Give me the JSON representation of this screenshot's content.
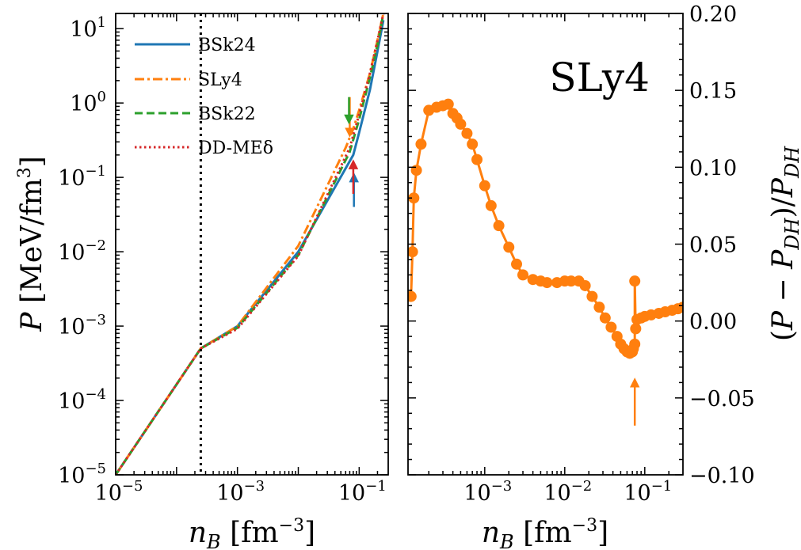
{
  "chart_data": [
    {
      "type": "line",
      "xlabel": "n_B [fm^-3]",
      "ylabel": "P [MeV/fm^3]",
      "xscale": "log",
      "yscale": "log",
      "xlim": [
        1e-05,
        0.3
      ],
      "ylim": [
        1e-05,
        16
      ],
      "xticks": [
        "10^-5",
        "10^-3",
        "10^-1"
      ],
      "yticks": [
        "10^-5",
        "10^-4",
        "10^-3",
        "10^-2",
        "10^-1",
        "10^0",
        "10^1"
      ],
      "vline_x": 0.00025,
      "legend_position": "top-left",
      "series": [
        {
          "name": "BSk24",
          "color": "#1f77b4",
          "style": "solid",
          "x": [
            1e-05,
            0.00025,
            0.001,
            0.01,
            0.08,
            0.1,
            0.15,
            0.2,
            0.25
          ],
          "y": [
            1e-05,
            0.0005,
            0.001,
            0.01,
            0.2,
            0.4,
            1.5,
            5,
            13
          ]
        },
        {
          "name": "SLy4",
          "color": "#ff7f0e",
          "style": "dashdot",
          "x": [
            1e-05,
            0.00025,
            0.001,
            0.01,
            0.06,
            0.08,
            0.1,
            0.15,
            0.2,
            0.25
          ],
          "y": [
            1e-05,
            0.0005,
            0.001,
            0.012,
            0.25,
            0.45,
            0.8,
            2.5,
            7,
            16
          ]
        },
        {
          "name": "BSk22",
          "color": "#2ca02c",
          "style": "dashed",
          "x": [
            1e-05,
            0.00025,
            0.001,
            0.01,
            0.07,
            0.1,
            0.15,
            0.2,
            0.25
          ],
          "y": [
            1e-05,
            0.0005,
            0.00095,
            0.009,
            0.22,
            0.6,
            2.2,
            6,
            16
          ]
        },
        {
          "name": "DD-MEδ",
          "color": "#d62728",
          "style": "dotted",
          "x": [
            1e-05,
            0.00025,
            0.001,
            0.01,
            0.07,
            0.1,
            0.15,
            0.2,
            0.25
          ],
          "y": [
            1e-05,
            0.0005,
            0.00092,
            0.0088,
            0.25,
            0.7,
            2.5,
            7,
            16
          ]
        }
      ],
      "arrows": [
        {
          "color": "#ff7f0e",
          "x": 0.07,
          "direction": "down",
          "from": 1.2,
          "to": 0.4
        },
        {
          "color": "#2ca02c",
          "x": 0.068,
          "direction": "down",
          "from": 1.2,
          "to": 0.6
        },
        {
          "color": "#1f77b4",
          "x": 0.082,
          "direction": "up",
          "from": 0.04,
          "to": 0.1
        },
        {
          "color": "#d62728",
          "x": 0.08,
          "direction": "up",
          "from": 0.06,
          "to": 0.15
        }
      ]
    },
    {
      "type": "line",
      "title": "SLy4",
      "xlabel": "n_B [fm^-3]",
      "ylabel": "(P − P_DH)/P_DH",
      "xscale": "log",
      "xlim": [
        0.00011,
        0.3
      ],
      "ylim": [
        -0.1,
        0.2
      ],
      "xticks": [
        "10^-3",
        "10^-2",
        "10^-1"
      ],
      "yticks": [
        "0.20",
        "0.15",
        "0.10",
        "0.05",
        "0.00",
        "−0.05",
        "−0.10"
      ],
      "yaxis_side": "right",
      "color": "#ff7f0e",
      "x": [
        0.00012,
        0.000125,
        0.00013,
        0.00014,
        0.00016,
        0.0002,
        0.00025,
        0.0003,
        0.00035,
        0.0004,
        0.00045,
        0.0005,
        0.0006,
        0.0007,
        0.0008,
        0.001,
        0.0012,
        0.0015,
        0.002,
        0.0025,
        0.003,
        0.004,
        0.005,
        0.006,
        0.008,
        0.01,
        0.012,
        0.015,
        0.018,
        0.022,
        0.027,
        0.032,
        0.038,
        0.045,
        0.05,
        0.055,
        0.06,
        0.065,
        0.07,
        0.072,
        0.075,
        0.075,
        0.077,
        0.08,
        0.09,
        0.1,
        0.12,
        0.15,
        0.18,
        0.22,
        0.26,
        0.3
      ],
      "y": [
        0.016,
        0.045,
        0.08,
        0.098,
        0.115,
        0.137,
        0.139,
        0.14,
        0.141,
        0.135,
        0.132,
        0.128,
        0.122,
        0.115,
        0.105,
        0.088,
        0.075,
        0.062,
        0.048,
        0.037,
        0.03,
        0.027,
        0.026,
        0.025,
        0.025,
        0.026,
        0.026,
        0.026,
        0.023,
        0.016,
        0.009,
        0.002,
        -0.004,
        -0.01,
        -0.015,
        -0.018,
        -0.02,
        -0.021,
        -0.02,
        -0.018,
        -0.015,
        0.026,
        -0.005,
        0.001,
        0.002,
        0.003,
        0.004,
        0.005,
        0.006,
        0.007,
        0.008,
        0.009
      ],
      "arrows": [
        {
          "color": "#ff7f0e",
          "x": 0.075,
          "direction": "up",
          "from": -0.068,
          "to": -0.04
        }
      ]
    }
  ]
}
